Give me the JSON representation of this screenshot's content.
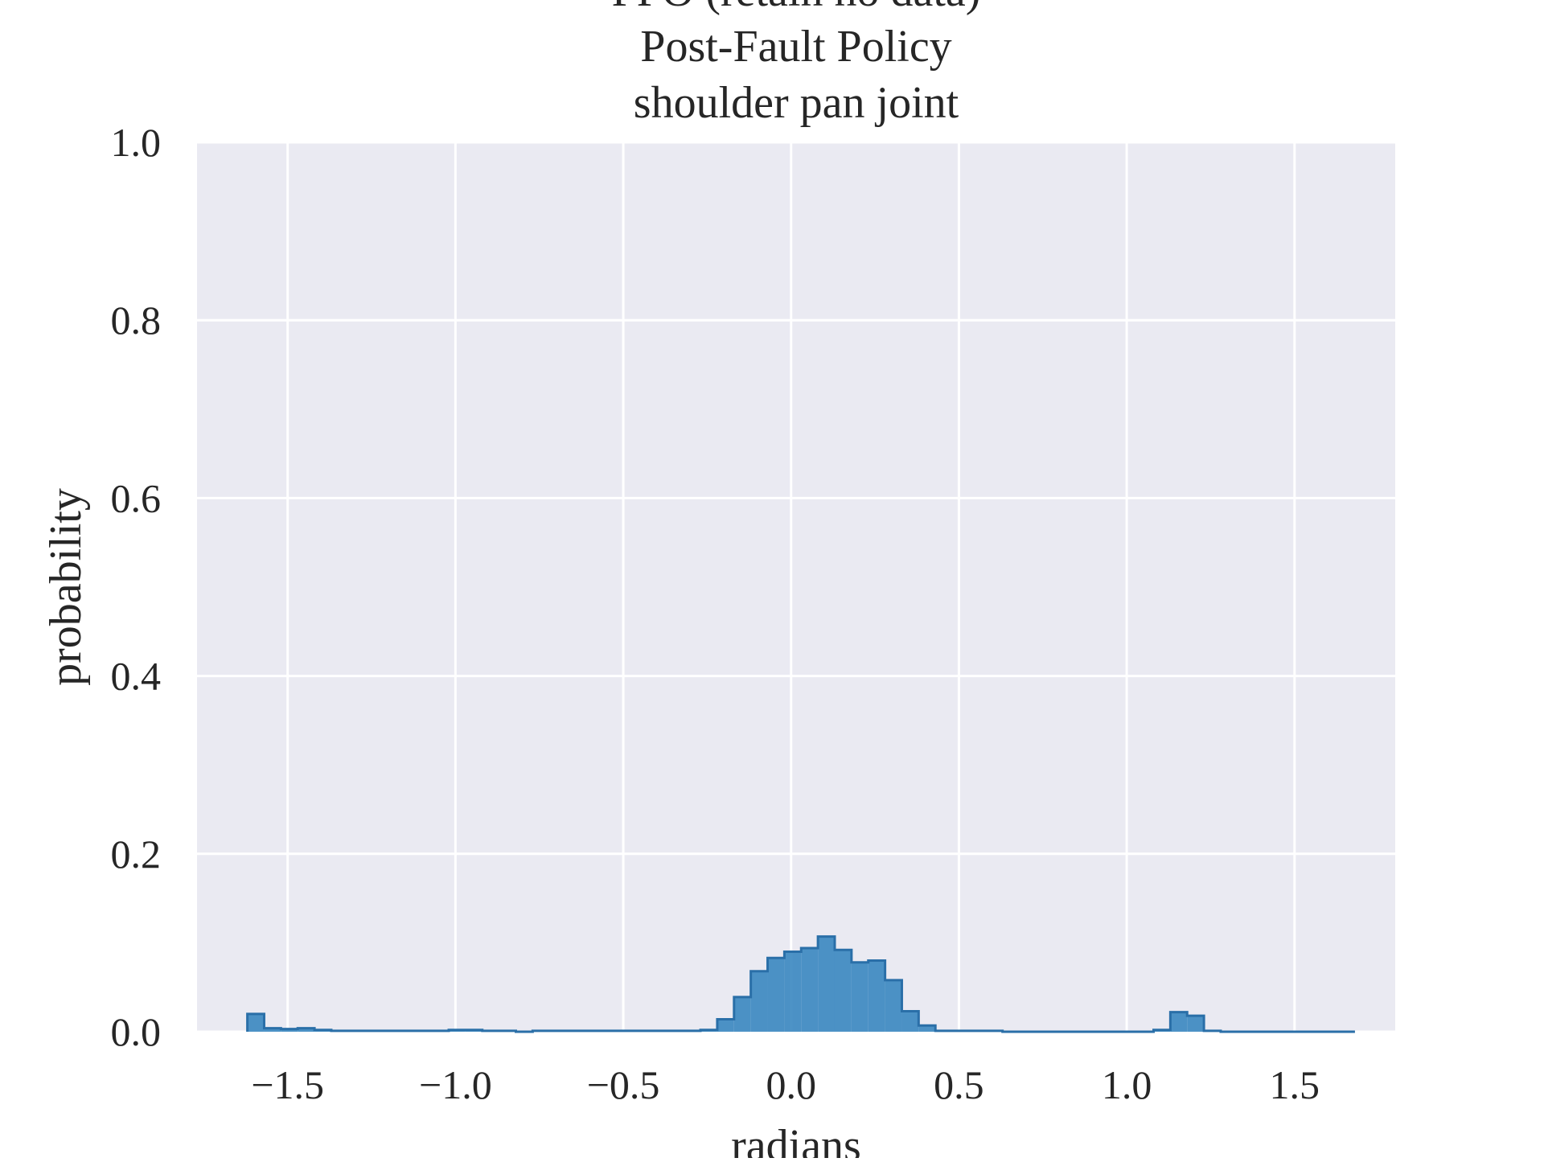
{
  "chart_data": {
    "type": "histogram",
    "title_lines": [
      "PPO (retain no data)",
      "Post-Fault Policy",
      "shoulder pan joint"
    ],
    "xlabel": "radians",
    "ylabel": "probability",
    "xlim": [
      -1.77,
      1.8
    ],
    "ylim": [
      0.0,
      1.0
    ],
    "x_ticks": [
      -1.5,
      -1.0,
      -0.5,
      0.0,
      0.5,
      1.0,
      1.5
    ],
    "x_tick_labels": [
      "−1.5",
      "−1.0",
      "−0.5",
      "0.0",
      "0.5",
      "1.0",
      "1.5"
    ],
    "y_ticks": [
      0.0,
      0.2,
      0.4,
      0.6,
      0.8,
      1.0
    ],
    "y_tick_labels": [
      "0.0",
      "0.2",
      "0.4",
      "0.6",
      "0.8",
      "1.0"
    ],
    "grid": true,
    "style": "seaborn-darkgrid",
    "colors": {
      "fill": "#3a87c0",
      "edge": "#2a6fa8",
      "background": "#eaeaf2",
      "grid": "#ffffff"
    },
    "bins": {
      "start": -1.62,
      "width": 0.05,
      "values": [
        0.02,
        0.004,
        0.003,
        0.004,
        0.002,
        0.001,
        0.001,
        0.001,
        0.001,
        0.001,
        0.001,
        0.001,
        0.002,
        0.002,
        0.001,
        0.001,
        0.0,
        0.001,
        0.001,
        0.001,
        0.001,
        0.001,
        0.001,
        0.001,
        0.001,
        0.001,
        0.001,
        0.002,
        0.014,
        0.039,
        0.068,
        0.083,
        0.09,
        0.094,
        0.107,
        0.092,
        0.078,
        0.08,
        0.058,
        0.023,
        0.007,
        0.001,
        0.001,
        0.001,
        0.001,
        0.0,
        0.0,
        0.0,
        0.0,
        0.0,
        0.0,
        0.0,
        0.0,
        0.0,
        0.002,
        0.022,
        0.018,
        0.001,
        0.0,
        0.0,
        0.0,
        0.0,
        0.0,
        0.0,
        0.0,
        0.0
      ]
    }
  }
}
